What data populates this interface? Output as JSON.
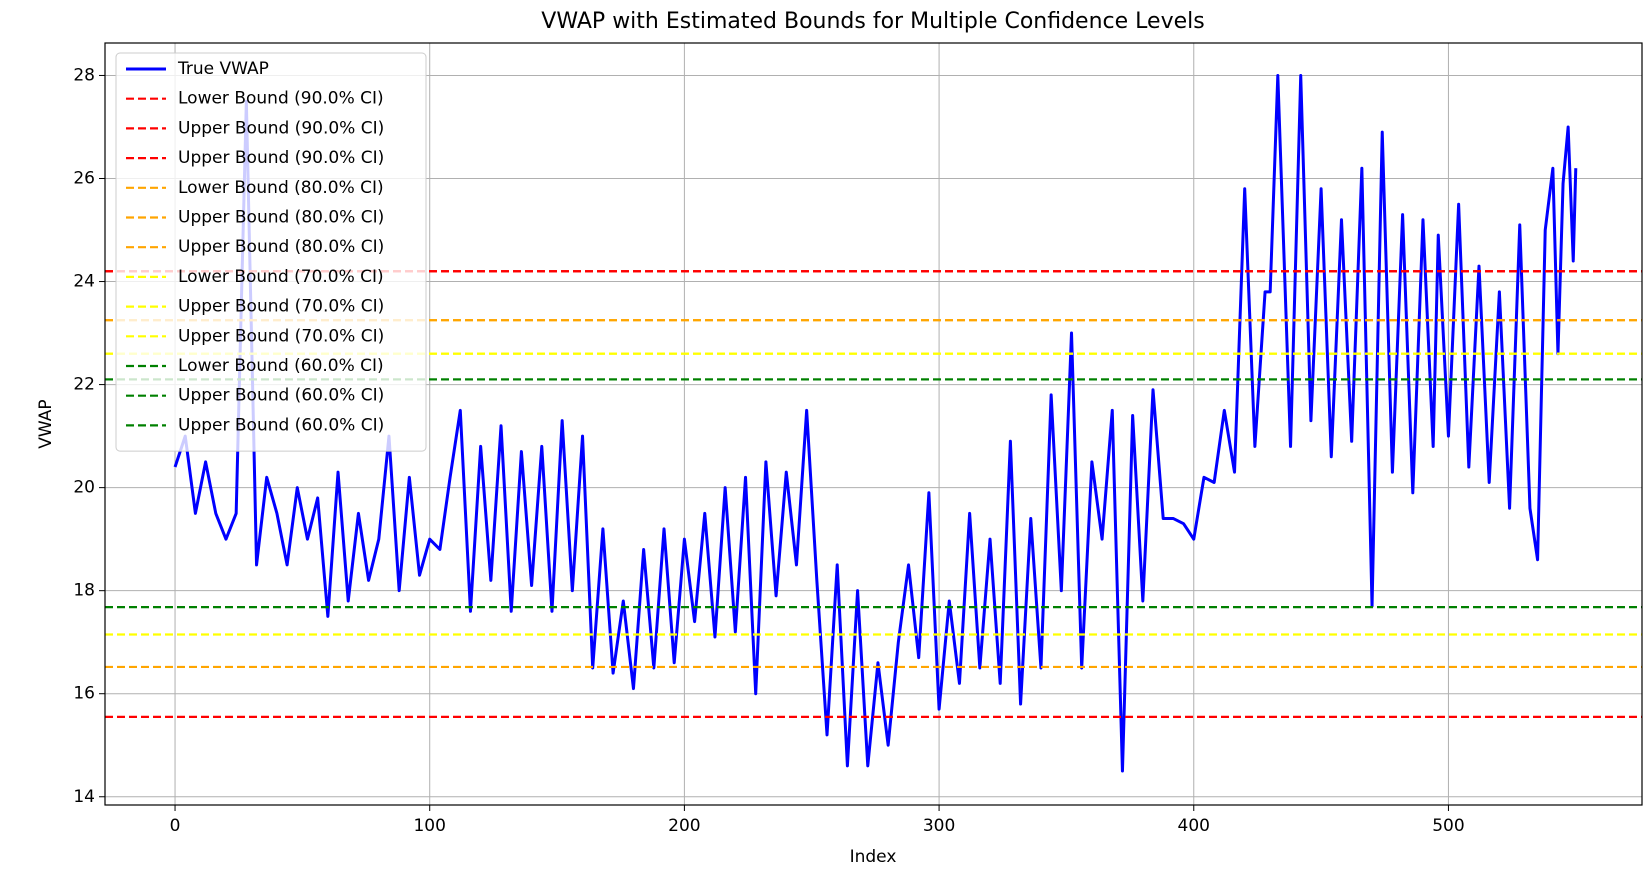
{
  "chart_data": {
    "type": "line",
    "title": "VWAP with Estimated Bounds for Multiple Confidence Levels",
    "xlabel": "Index",
    "ylabel": "VWAP",
    "x": [
      0,
      4,
      8,
      12,
      16,
      20,
      24,
      28,
      32,
      36,
      40,
      44,
      48,
      52,
      56,
      60,
      64,
      68,
      72,
      76,
      80,
      84,
      88,
      92,
      96,
      100,
      104,
      108,
      112,
      116,
      120,
      124,
      128,
      132,
      136,
      140,
      144,
      148,
      152,
      156,
      160,
      164,
      168,
      172,
      176,
      180,
      184,
      188,
      192,
      196,
      200,
      204,
      208,
      212,
      216,
      220,
      224,
      228,
      232,
      236,
      240,
      244,
      248,
      252,
      256,
      260,
      264,
      268,
      272,
      276,
      280,
      284,
      288,
      292,
      296,
      300,
      304,
      308,
      312,
      316,
      320,
      324,
      328,
      332,
      336,
      340,
      344,
      348,
      352,
      356,
      360,
      364,
      368,
      372,
      376,
      380,
      384,
      388,
      392,
      396,
      400,
      404,
      408,
      412,
      416,
      420,
      424,
      428,
      430,
      433,
      438,
      442,
      446,
      450,
      454,
      458,
      462,
      466,
      470,
      474,
      478,
      482,
      486,
      490,
      494,
      496,
      500,
      504,
      508,
      512,
      516,
      520,
      524,
      528,
      532,
      535,
      538,
      541,
      543,
      545,
      547,
      549,
      550
    ],
    "series": [
      {
        "name": "True VWAP",
        "color": "#0000ff",
        "values": [
          20.4,
          21.0,
          19.5,
          20.5,
          19.5,
          19.0,
          19.5,
          27.5,
          18.5,
          20.2,
          19.5,
          18.5,
          20.0,
          19.0,
          19.8,
          17.5,
          20.3,
          17.8,
          19.5,
          18.2,
          19.0,
          21.0,
          18.0,
          20.2,
          18.3,
          19.0,
          18.8,
          20.2,
          21.5,
          17.6,
          20.8,
          18.2,
          21.2,
          17.6,
          20.7,
          18.1,
          20.8,
          17.6,
          21.3,
          18.0,
          21.0,
          16.5,
          19.2,
          16.4,
          17.8,
          16.1,
          18.8,
          16.5,
          19.2,
          16.6,
          19.0,
          17.4,
          19.5,
          17.1,
          20.0,
          17.2,
          20.2,
          16.0,
          20.5,
          17.9,
          20.3,
          18.5,
          21.5,
          18.2,
          15.2,
          18.5,
          14.6,
          18.0,
          14.6,
          16.6,
          15.0,
          17.0,
          18.5,
          16.7,
          19.9,
          15.7,
          17.8,
          16.2,
          19.5,
          16.5,
          19.0,
          16.2,
          20.9,
          15.8,
          19.4,
          16.5,
          21.8,
          18.0,
          23.0,
          16.5,
          20.5,
          19.0,
          21.5,
          14.5,
          21.4,
          17.8,
          21.9,
          19.4,
          19.4,
          19.3,
          19.0,
          20.2,
          20.1,
          21.5,
          20.3,
          25.8,
          20.8,
          23.8,
          23.8,
          28.0,
          20.8,
          28.0,
          21.3,
          25.8,
          20.6,
          25.2,
          20.9,
          26.2,
          17.7,
          26.9,
          20.3,
          25.3,
          19.9,
          25.2,
          20.8,
          24.9,
          21.0,
          25.5,
          20.4,
          24.3,
          20.1,
          23.8,
          19.6,
          25.1,
          19.6,
          18.6,
          25.0,
          26.2,
          22.6,
          25.9,
          27.0,
          24.4,
          26.2
        ]
      }
    ],
    "hlines": [
      {
        "name": "Lower Bound (90.0% CI)",
        "color": "#ff0000",
        "value": 15.55
      },
      {
        "name": "Upper Bound (90.0% CI)",
        "color": "#ff0000",
        "value": 24.2
      },
      {
        "name": "Upper Bound (90.0% CI)",
        "color": "#ff0000",
        "value": 24.2
      },
      {
        "name": "Lower Bound (80.0% CI)",
        "color": "#ffa500",
        "value": 16.52
      },
      {
        "name": "Upper Bound (80.0% CI)",
        "color": "#ffa500",
        "value": 23.25
      },
      {
        "name": "Upper Bound (80.0% CI)",
        "color": "#ffa500",
        "value": 23.25
      },
      {
        "name": "Lower Bound (70.0% CI)",
        "color": "#ffff00",
        "value": 17.15
      },
      {
        "name": "Upper Bound (70.0% CI)",
        "color": "#ffff00",
        "value": 22.6
      },
      {
        "name": "Upper Bound (70.0% CI)",
        "color": "#ffff00",
        "value": 22.6
      },
      {
        "name": "Lower Bound (60.0% CI)",
        "color": "#008000",
        "value": 17.68
      },
      {
        "name": "Upper Bound (60.0% CI)",
        "color": "#008000",
        "value": 22.1
      },
      {
        "name": "Upper Bound (60.0% CI)",
        "color": "#008000",
        "value": 22.1
      }
    ],
    "xlim": [
      -27.5,
      576
    ],
    "ylim": [
      13.84,
      28.63
    ],
    "xticks": [
      0,
      100,
      200,
      300,
      400,
      500
    ],
    "yticks": [
      14,
      16,
      18,
      20,
      22,
      24,
      26,
      28
    ],
    "grid": true,
    "legend": "upper left"
  }
}
